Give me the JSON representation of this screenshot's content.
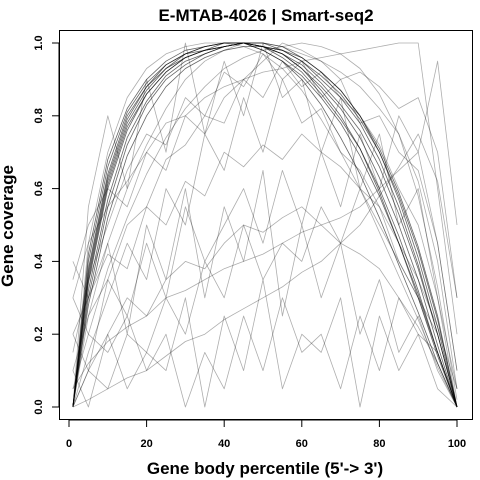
{
  "chart_data": {
    "type": "line",
    "title": "E-MTAB-4026 | Smart-seq2",
    "xlabel": "Gene body percentile (5'-> 3')",
    "ylabel": "Gene coverage",
    "xlim": [
      0,
      100
    ],
    "ylim": [
      0,
      1
    ],
    "xticks": [
      "0",
      "20",
      "40",
      "60",
      "80",
      "100"
    ],
    "xtick_values": [
      0,
      20,
      40,
      60,
      80,
      100
    ],
    "yticks": [
      "0.0",
      "0.2",
      "0.4",
      "0.6",
      "0.8",
      "1.0"
    ],
    "ytick_values": [
      0,
      0.2,
      0.4,
      0.6,
      0.8,
      1.0
    ],
    "grid": false,
    "legend": "none",
    "line_color": "#000000",
    "x": [
      1,
      5,
      10,
      15,
      20,
      25,
      30,
      35,
      40,
      45,
      50,
      55,
      60,
      65,
      70,
      75,
      80,
      85,
      90,
      95,
      100
    ],
    "series": [
      {
        "values": [
          0.0,
          0.36,
          0.62,
          0.78,
          0.87,
          0.93,
          0.96,
          0.98,
          0.99,
          1.0,
          0.99,
          0.97,
          0.93,
          0.88,
          0.82,
          0.74,
          0.63,
          0.5,
          0.35,
          0.17,
          0.0
        ]
      },
      {
        "values": [
          0.0,
          0.34,
          0.6,
          0.76,
          0.86,
          0.92,
          0.96,
          0.98,
          0.99,
          1.0,
          0.99,
          0.96,
          0.92,
          0.86,
          0.79,
          0.71,
          0.6,
          0.47,
          0.32,
          0.15,
          0.0
        ]
      },
      {
        "values": [
          0.0,
          0.38,
          0.64,
          0.8,
          0.88,
          0.94,
          0.97,
          0.99,
          1.0,
          1.0,
          1.0,
          0.98,
          0.95,
          0.9,
          0.85,
          0.78,
          0.68,
          0.55,
          0.39,
          0.2,
          0.0
        ]
      },
      {
        "values": [
          0.0,
          0.32,
          0.57,
          0.74,
          0.84,
          0.91,
          0.95,
          0.97,
          0.99,
          1.0,
          0.98,
          0.95,
          0.91,
          0.85,
          0.78,
          0.69,
          0.58,
          0.45,
          0.31,
          0.15,
          0.0
        ]
      },
      {
        "values": [
          0.0,
          0.4,
          0.66,
          0.81,
          0.89,
          0.94,
          0.97,
          0.99,
          1.0,
          1.0,
          1.0,
          0.99,
          0.96,
          0.92,
          0.87,
          0.8,
          0.7,
          0.57,
          0.41,
          0.22,
          0.0
        ]
      },
      {
        "values": [
          0.0,
          0.3,
          0.55,
          0.72,
          0.83,
          0.9,
          0.94,
          0.97,
          0.99,
          1.0,
          0.99,
          0.97,
          0.94,
          0.89,
          0.83,
          0.76,
          0.66,
          0.53,
          0.38,
          0.2,
          0.0
        ]
      },
      {
        "values": [
          0.0,
          0.35,
          0.61,
          0.77,
          0.86,
          0.92,
          0.96,
          0.98,
          0.99,
          1.0,
          0.99,
          0.98,
          0.95,
          0.91,
          0.86,
          0.79,
          0.7,
          0.58,
          0.43,
          0.24,
          0.0
        ]
      },
      {
        "values": [
          0.0,
          0.42,
          0.68,
          0.82,
          0.9,
          0.95,
          0.98,
          0.99,
          1.0,
          1.0,
          0.99,
          0.97,
          0.93,
          0.87,
          0.8,
          0.71,
          0.59,
          0.45,
          0.3,
          0.14,
          0.0
        ]
      },
      {
        "values": [
          0.0,
          0.28,
          0.52,
          0.69,
          0.8,
          0.88,
          0.93,
          0.96,
          0.98,
          0.99,
          0.99,
          0.98,
          0.96,
          0.92,
          0.87,
          0.8,
          0.71,
          0.59,
          0.44,
          0.25,
          0.0
        ]
      },
      {
        "values": [
          0.0,
          0.37,
          0.63,
          0.79,
          0.88,
          0.93,
          0.97,
          0.98,
          1.0,
          1.0,
          0.98,
          0.95,
          0.9,
          0.83,
          0.74,
          0.64,
          0.52,
          0.39,
          0.26,
          0.12,
          0.0
        ]
      },
      {
        "values": [
          0.05,
          0.2,
          0.38,
          0.52,
          0.64,
          0.74,
          0.82,
          0.88,
          0.93,
          0.96,
          0.98,
          0.99,
          1.0,
          0.99,
          0.97,
          0.93,
          0.86,
          0.75,
          0.58,
          0.33,
          0.02
        ]
      },
      {
        "values": [
          0.1,
          0.25,
          0.35,
          0.5,
          0.55,
          0.68,
          0.72,
          0.8,
          0.78,
          0.9,
          0.85,
          0.95,
          0.88,
          0.92,
          0.85,
          0.8,
          0.72,
          0.6,
          0.5,
          0.3,
          0.05
        ]
      },
      {
        "values": [
          0.2,
          0.3,
          0.42,
          0.38,
          0.55,
          0.5,
          0.62,
          0.58,
          0.7,
          0.66,
          0.72,
          0.68,
          0.75,
          0.7,
          0.66,
          0.6,
          0.55,
          0.45,
          0.35,
          0.22,
          0.05
        ]
      },
      {
        "values": [
          0.0,
          0.15,
          0.3,
          0.45,
          0.35,
          0.6,
          0.5,
          0.75,
          0.65,
          0.85,
          0.7,
          0.9,
          0.78,
          0.82,
          0.7,
          0.65,
          0.55,
          0.4,
          0.3,
          0.15,
          0.0
        ]
      },
      {
        "values": [
          0.3,
          0.45,
          0.55,
          0.62,
          0.7,
          0.78,
          0.8,
          0.85,
          0.88,
          0.9,
          0.92,
          0.93,
          0.95,
          0.96,
          0.97,
          0.98,
          0.99,
          1.0,
          1.0,
          0.6,
          0.2
        ]
      },
      {
        "values": [
          0.05,
          0.12,
          0.18,
          0.22,
          0.25,
          0.3,
          0.32,
          0.35,
          0.38,
          0.4,
          0.42,
          0.45,
          0.48,
          0.5,
          0.52,
          0.55,
          0.6,
          0.65,
          0.7,
          0.45,
          0.1
        ]
      },
      {
        "values": [
          0.0,
          0.02,
          0.05,
          0.08,
          0.1,
          0.14,
          0.18,
          0.2,
          0.24,
          0.27,
          0.3,
          0.33,
          0.37,
          0.4,
          0.45,
          0.5,
          0.58,
          0.66,
          0.75,
          0.62,
          0.3
        ]
      },
      {
        "values": [
          0.4,
          0.3,
          0.45,
          0.2,
          0.5,
          0.35,
          0.6,
          0.3,
          0.55,
          0.4,
          0.65,
          0.25,
          0.5,
          0.3,
          0.45,
          0.2,
          0.35,
          0.15,
          0.25,
          0.1,
          0.0
        ]
      },
      {
        "values": [
          0.1,
          0.0,
          0.2,
          0.05,
          0.15,
          0.1,
          0.3,
          0.0,
          0.25,
          0.1,
          0.35,
          0.05,
          0.2,
          0.15,
          0.3,
          0.0,
          0.25,
          0.1,
          0.2,
          0.05,
          0.0
        ]
      },
      {
        "values": [
          0.0,
          0.55,
          0.8,
          0.6,
          0.9,
          0.7,
          1.0,
          0.75,
          0.95,
          0.8,
          1.0,
          0.85,
          0.9,
          0.7,
          0.85,
          0.6,
          0.75,
          0.5,
          0.6,
          0.3,
          0.0
        ]
      },
      {
        "values": [
          0.2,
          0.1,
          0.35,
          0.25,
          0.45,
          0.3,
          0.55,
          0.4,
          0.5,
          0.6,
          0.45,
          0.65,
          0.5,
          0.7,
          0.55,
          0.75,
          0.6,
          0.8,
          0.7,
          0.95,
          0.5
        ]
      },
      {
        "values": [
          0.0,
          0.1,
          0.05,
          0.2,
          0.15,
          0.3,
          0.2,
          0.4,
          0.3,
          0.5,
          0.35,
          0.45,
          0.4,
          0.55,
          0.45,
          0.6,
          0.5,
          0.4,
          0.3,
          0.2,
          0.0
        ]
      },
      {
        "values": [
          0.3,
          0.2,
          0.15,
          0.25,
          0.1,
          0.2,
          0.0,
          0.15,
          0.05,
          0.25,
          0.1,
          0.3,
          0.15,
          0.2,
          0.05,
          0.25,
          0.1,
          0.3,
          0.2,
          0.15,
          0.0
        ]
      },
      {
        "values": [
          0.0,
          0.25,
          0.45,
          0.6,
          0.72,
          0.82,
          0.9,
          0.95,
          0.98,
          1.0,
          1.0,
          0.99,
          0.97,
          0.95,
          0.92,
          0.88,
          0.82,
          0.75,
          0.62,
          0.4,
          0.05
        ]
      },
      {
        "values": [
          0.0,
          0.45,
          0.7,
          0.85,
          0.93,
          0.97,
          0.99,
          1.0,
          1.0,
          0.99,
          0.97,
          0.93,
          0.87,
          0.79,
          0.7,
          0.6,
          0.48,
          0.36,
          0.24,
          0.11,
          0.0
        ]
      },
      {
        "values": [
          0.15,
          0.35,
          0.5,
          0.65,
          0.75,
          0.72,
          0.85,
          0.8,
          0.92,
          0.88,
          0.97,
          0.9,
          0.95,
          0.85,
          0.9,
          0.78,
          0.8,
          0.7,
          0.65,
          0.45,
          0.1
        ]
      },
      {
        "values": [
          0.0,
          0.1,
          0.2,
          0.3,
          0.25,
          0.35,
          0.4,
          0.38,
          0.45,
          0.5,
          0.48,
          0.52,
          0.55,
          0.5,
          0.45,
          0.42,
          0.38,
          0.3,
          0.22,
          0.12,
          0.0
        ]
      },
      {
        "values": [
          0.35,
          0.5,
          0.6,
          0.55,
          0.7,
          0.65,
          0.8,
          0.75,
          0.85,
          0.9,
          0.95,
          1.0,
          0.98,
          0.95,
          0.9,
          0.92,
          0.88,
          0.82,
          0.85,
          0.7,
          0.3
        ]
      }
    ]
  }
}
